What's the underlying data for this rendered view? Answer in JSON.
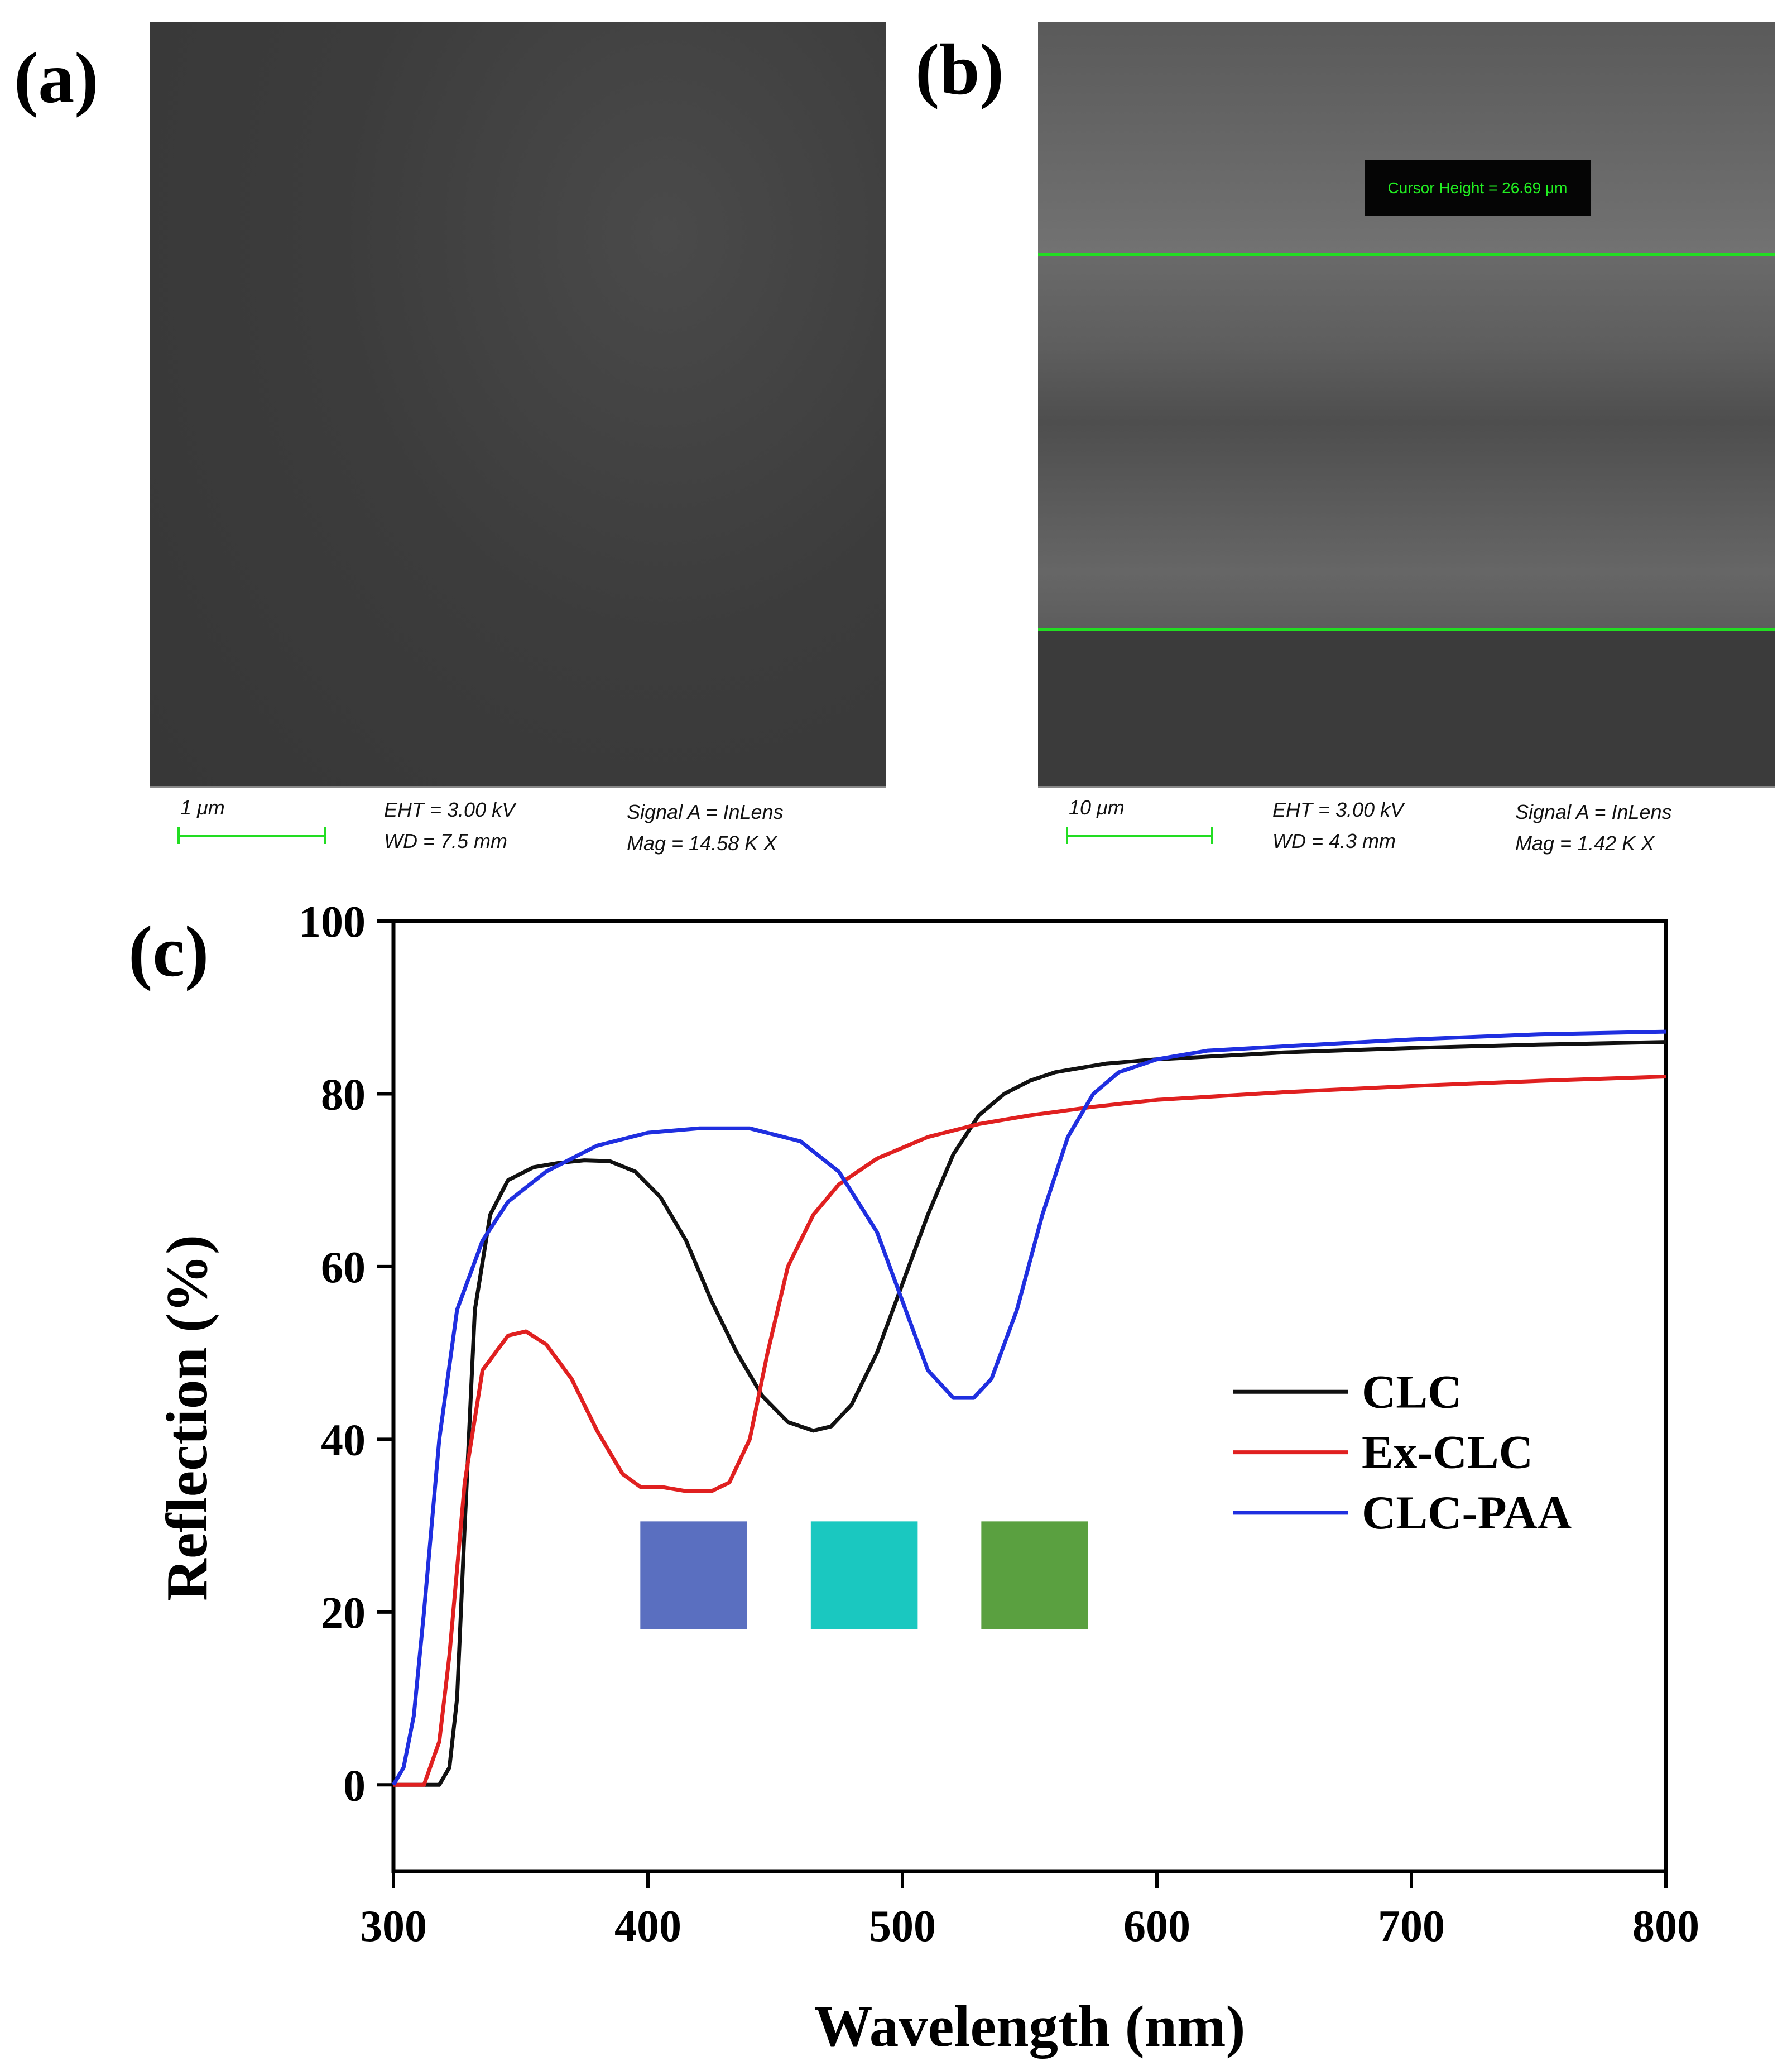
{
  "panels": {
    "a": {
      "label": "(a)",
      "scale": "1 μm",
      "eht": "EHT =  3.00 kV",
      "wd": "WD =  7.5 mm",
      "signal": "Signal A = InLens",
      "mag": "Mag =    14.58 K X"
    },
    "b": {
      "label": "(b)",
      "cursor": "Cursor Height = 26.69 μm",
      "scale": "10 μm",
      "eht": "EHT =  3.00 kV",
      "wd": "WD =  4.3 mm",
      "signal": "Signal A = InLens",
      "mag": "Mag =    1.42 K X"
    },
    "c": {
      "label": "(c)"
    }
  },
  "colors": {
    "clc": "#111111",
    "ex_clc": "#e02020",
    "clc_paa": "#1f2fe0",
    "scalebar": "#22dd22"
  },
  "swatches": [
    {
      "name": "blue-swatch",
      "color": "#5a6fc0"
    },
    {
      "name": "cyan-swatch",
      "color": "#1ac8c0"
    },
    {
      "name": "green-swatch",
      "color": "#5aa040"
    }
  ],
  "chart_data": {
    "type": "line",
    "xlabel": "Wavelength (nm)",
    "ylabel": "Reflection (%)",
    "xlim": [
      300,
      800
    ],
    "ylim": [
      -10,
      100
    ],
    "xticks": [
      300,
      400,
      500,
      600,
      700,
      800
    ],
    "yticks": [
      0,
      20,
      40,
      60,
      80,
      100
    ],
    "legend_position": "right-middle",
    "series": [
      {
        "name": "CLC",
        "color": "#111111",
        "x": [
          300,
          310,
          318,
          322,
          325,
          328,
          332,
          338,
          345,
          355,
          365,
          375,
          385,
          395,
          405,
          415,
          425,
          435,
          445,
          455,
          465,
          472,
          480,
          490,
          500,
          510,
          520,
          530,
          540,
          550,
          560,
          580,
          600,
          620,
          650,
          700,
          750,
          800
        ],
        "y": [
          0,
          0,
          0,
          2,
          10,
          30,
          55,
          66,
          70,
          71.5,
          72,
          72.3,
          72.2,
          71,
          68,
          63,
          56,
          50,
          45,
          42,
          41,
          41.5,
          44,
          50,
          58,
          66,
          73,
          77.5,
          80,
          81.5,
          82.5,
          83.5,
          84,
          84.3,
          84.8,
          85.3,
          85.7,
          86
        ]
      },
      {
        "name": "Ex-CLC",
        "color": "#e02020",
        "x": [
          300,
          306,
          312,
          318,
          322,
          328,
          335,
          345,
          352,
          360,
          370,
          380,
          390,
          397,
          405,
          415,
          425,
          432,
          440,
          447,
          455,
          465,
          475,
          490,
          510,
          530,
          550,
          575,
          600,
          650,
          700,
          750,
          800
        ],
        "y": [
          0,
          0,
          0,
          5,
          15,
          35,
          48,
          52,
          52.5,
          51,
          47,
          41,
          36,
          34.5,
          34.5,
          34,
          34,
          35,
          40,
          50,
          60,
          66,
          69.5,
          72.5,
          75,
          76.5,
          77.5,
          78.5,
          79.3,
          80.2,
          80.9,
          81.5,
          82
        ]
      },
      {
        "name": "CLC-PAA",
        "color": "#1f2fe0",
        "x": [
          300,
          304,
          308,
          312,
          318,
          325,
          335,
          345,
          360,
          380,
          400,
          420,
          440,
          460,
          475,
          490,
          500,
          510,
          520,
          528,
          535,
          545,
          555,
          565,
          575,
          585,
          600,
          620,
          650,
          700,
          750,
          800
        ],
        "y": [
          0,
          2,
          8,
          20,
          40,
          55,
          63,
          67.5,
          71,
          74,
          75.5,
          76,
          76,
          74.5,
          71,
          64,
          56,
          48,
          44.8,
          44.8,
          47,
          55,
          66,
          75,
          80,
          82.5,
          84,
          85,
          85.5,
          86.3,
          86.9,
          87.2
        ]
      }
    ]
  }
}
